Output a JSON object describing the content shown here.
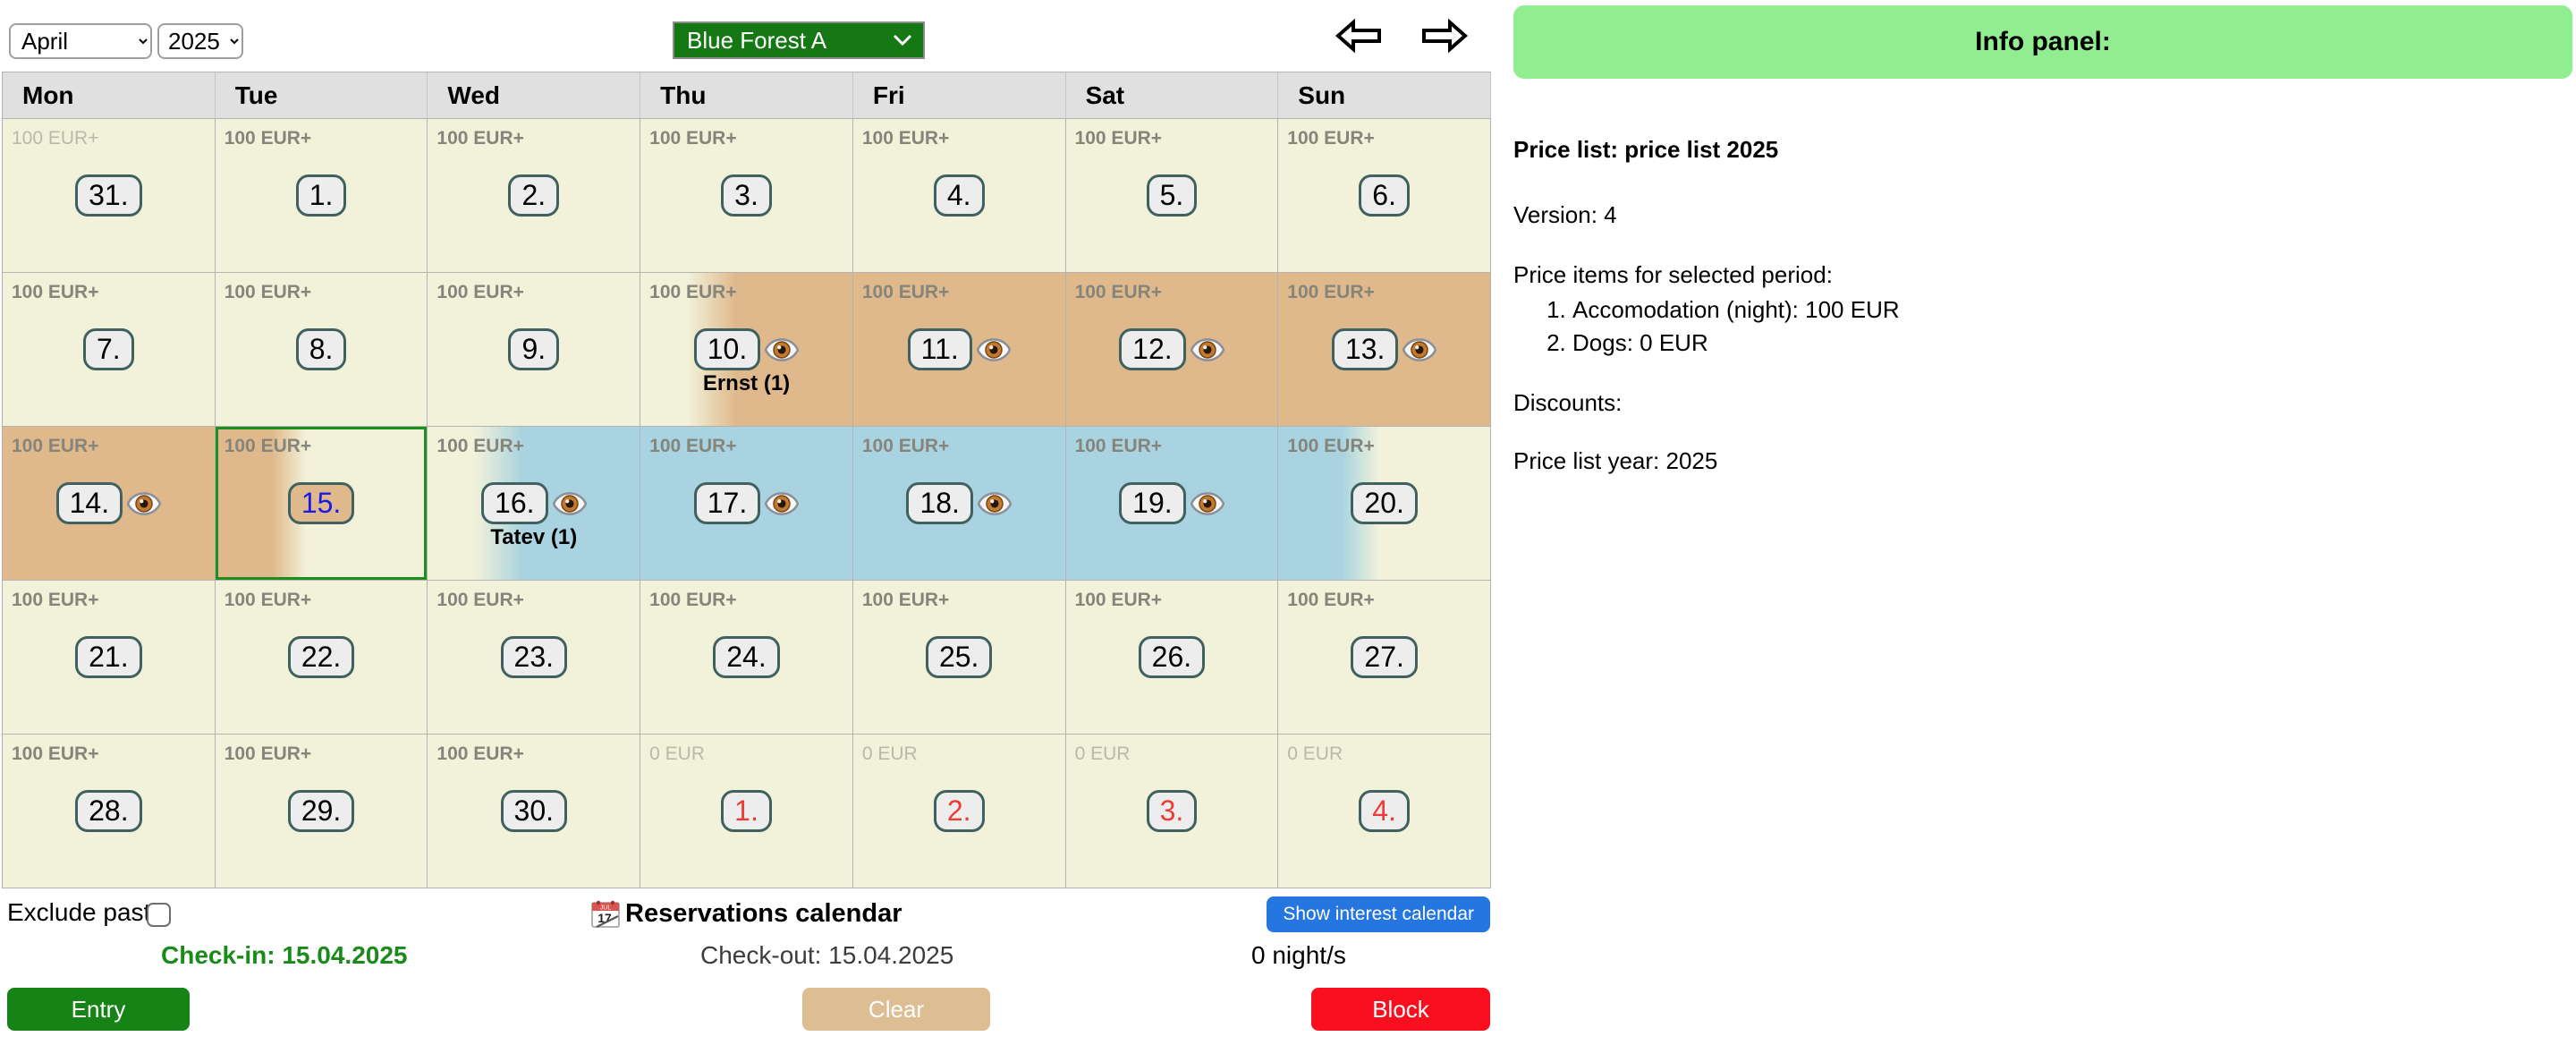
{
  "toolbar": {
    "month": "April",
    "year": "2025",
    "property": "Blue Forest A"
  },
  "weekdays": [
    "Mon",
    "Tue",
    "Wed",
    "Thu",
    "Fri",
    "Sat",
    "Sun"
  ],
  "calendar": {
    "cells": [
      {
        "day": "31.",
        "price": "100 EUR+",
        "state": "past",
        "eye": false,
        "guest": ""
      },
      {
        "day": "1.",
        "price": "100 EUR+",
        "state": "normal",
        "eye": false,
        "guest": ""
      },
      {
        "day": "2.",
        "price": "100 EUR+",
        "state": "normal",
        "eye": false,
        "guest": ""
      },
      {
        "day": "3.",
        "price": "100 EUR+",
        "state": "normal",
        "eye": false,
        "guest": ""
      },
      {
        "day": "4.",
        "price": "100 EUR+",
        "state": "normal",
        "eye": false,
        "guest": ""
      },
      {
        "day": "5.",
        "price": "100 EUR+",
        "state": "normal",
        "eye": false,
        "guest": ""
      },
      {
        "day": "6.",
        "price": "100 EUR+",
        "state": "normal",
        "eye": false,
        "guest": ""
      },
      {
        "day": "7.",
        "price": "100 EUR+",
        "state": "normal",
        "eye": false,
        "guest": ""
      },
      {
        "day": "8.",
        "price": "100 EUR+",
        "state": "normal",
        "eye": false,
        "guest": ""
      },
      {
        "day": "9.",
        "price": "100 EUR+",
        "state": "normal",
        "eye": false,
        "guest": ""
      },
      {
        "day": "10.",
        "price": "100 EUR+",
        "state": "in-tan",
        "eye": true,
        "guest": "Ernst (1)"
      },
      {
        "day": "11.",
        "price": "100 EUR+",
        "state": "res-tan",
        "eye": true,
        "guest": ""
      },
      {
        "day": "12.",
        "price": "100 EUR+",
        "state": "res-tan",
        "eye": true,
        "guest": ""
      },
      {
        "day": "13.",
        "price": "100 EUR+",
        "state": "res-tan",
        "eye": true,
        "guest": ""
      },
      {
        "day": "14.",
        "price": "100 EUR+",
        "state": "res-tan",
        "eye": true,
        "guest": ""
      },
      {
        "day": "15.",
        "price": "100 EUR+",
        "state": "out-tan selected",
        "eye": false,
        "guest": ""
      },
      {
        "day": "16.",
        "price": "100 EUR+",
        "state": "in-blue",
        "eye": true,
        "guest": "Tatev (1)"
      },
      {
        "day": "17.",
        "price": "100 EUR+",
        "state": "res-blue",
        "eye": true,
        "guest": ""
      },
      {
        "day": "18.",
        "price": "100 EUR+",
        "state": "res-blue",
        "eye": true,
        "guest": ""
      },
      {
        "day": "19.",
        "price": "100 EUR+",
        "state": "res-blue",
        "eye": true,
        "guest": ""
      },
      {
        "day": "20.",
        "price": "100 EUR+",
        "state": "out-blue",
        "eye": false,
        "guest": ""
      },
      {
        "day": "21.",
        "price": "100 EUR+",
        "state": "normal",
        "eye": false,
        "guest": ""
      },
      {
        "day": "22.",
        "price": "100 EUR+",
        "state": "normal",
        "eye": false,
        "guest": ""
      },
      {
        "day": "23.",
        "price": "100 EUR+",
        "state": "normal",
        "eye": false,
        "guest": ""
      },
      {
        "day": "24.",
        "price": "100 EUR+",
        "state": "normal",
        "eye": false,
        "guest": ""
      },
      {
        "day": "25.",
        "price": "100 EUR+",
        "state": "normal",
        "eye": false,
        "guest": ""
      },
      {
        "day": "26.",
        "price": "100 EUR+",
        "state": "normal",
        "eye": false,
        "guest": ""
      },
      {
        "day": "27.",
        "price": "100 EUR+",
        "state": "normal",
        "eye": false,
        "guest": ""
      },
      {
        "day": "28.",
        "price": "100 EUR+",
        "state": "normal",
        "eye": false,
        "guest": ""
      },
      {
        "day": "29.",
        "price": "100 EUR+",
        "state": "normal",
        "eye": false,
        "guest": ""
      },
      {
        "day": "30.",
        "price": "100 EUR+",
        "state": "normal",
        "eye": false,
        "guest": ""
      },
      {
        "day": "1.",
        "price": "0 EUR",
        "state": "next",
        "eye": false,
        "guest": ""
      },
      {
        "day": "2.",
        "price": "0 EUR",
        "state": "next",
        "eye": false,
        "guest": ""
      },
      {
        "day": "3.",
        "price": "0 EUR",
        "state": "next",
        "eye": false,
        "guest": ""
      },
      {
        "day": "4.",
        "price": "0 EUR",
        "state": "next",
        "eye": false,
        "guest": ""
      }
    ]
  },
  "footer": {
    "exclude_past_label": "Exclude past",
    "calendar_title": "Reservations calendar",
    "calendar_icon": {
      "month": "JUL",
      "day": "17"
    },
    "show_interest_label": "Show interest calendar",
    "check_in": "Check-in: 15.04.2025",
    "check_out": "Check-out: 15.04.2025",
    "nights": "0 night/s",
    "entry_label": "Entry",
    "clear_label": "Clear",
    "block_label": "Block"
  },
  "info_panel": {
    "title": "Info panel:",
    "price_list_line": "Price list: price list 2025",
    "version_line": "Version: 4",
    "period_header": "Price items for selected period:",
    "items": [
      "Accomodation (night): 100 EUR",
      "Dogs: 0 EUR"
    ],
    "discounts_line": "Discounts:",
    "year_line": "Price list year: 2025"
  },
  "colors": {
    "reserved_tan": "#dfb98c",
    "reserved_blue": "#a9d3e0",
    "cell_yellow": "#f2f2da",
    "selected_border_green": "#1e8e1e",
    "info_header_green": "#90ee90",
    "entry_green": "#168316",
    "clear_tan": "#ddbd92",
    "block_red": "#fa0f1f",
    "interest_blue": "#2576e0",
    "property_select_green": "#157815",
    "next_month_day_red": "#ef3b36",
    "selected_day_blue": "#1a1ae6",
    "checkin_text_green": "#1a8a1a"
  }
}
